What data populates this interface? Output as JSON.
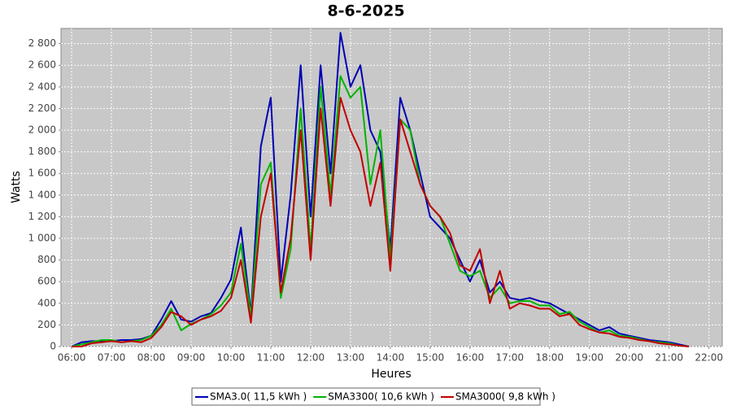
{
  "chart_data": {
    "type": "line",
    "title": "8-6-2025",
    "x_label": "Heures",
    "y_label": "Watts",
    "x": [
      "06:00",
      "06:15",
      "06:30",
      "06:45",
      "07:00",
      "07:15",
      "07:30",
      "07:45",
      "08:00",
      "08:15",
      "08:30",
      "08:45",
      "09:00",
      "09:15",
      "09:30",
      "09:45",
      "10:00",
      "10:15",
      "10:30",
      "10:45",
      "11:00",
      "11:15",
      "11:30",
      "11:45",
      "12:00",
      "12:15",
      "12:30",
      "12:45",
      "13:00",
      "13:15",
      "13:30",
      "13:45",
      "14:00",
      "14:15",
      "14:30",
      "14:45",
      "15:00",
      "15:15",
      "15:30",
      "15:45",
      "16:00",
      "16:15",
      "16:30",
      "16:45",
      "17:00",
      "17:15",
      "17:30",
      "17:45",
      "18:00",
      "18:15",
      "18:30",
      "18:45",
      "19:00",
      "19:15",
      "19:30",
      "19:45",
      "20:00",
      "20:15",
      "20:30",
      "20:45",
      "21:00",
      "21:15",
      "21:30"
    ],
    "series": [
      {
        "name": "SMA3.0( 11,5 kWh )",
        "color": "#0000b4",
        "values": [
          0,
          40,
          50,
          50,
          50,
          60,
          60,
          70,
          100,
          250,
          420,
          250,
          230,
          280,
          310,
          450,
          620,
          1100,
          300,
          1850,
          2300,
          600,
          1400,
          2600,
          1200,
          2600,
          1600,
          2900,
          2400,
          2600,
          2000,
          1800,
          900,
          2300,
          2000,
          1600,
          1200,
          1100,
          1000,
          800,
          600,
          800,
          500,
          600,
          450,
          430,
          450,
          420,
          400,
          350,
          300,
          250,
          200,
          150,
          180,
          120,
          100,
          80,
          60,
          50,
          40,
          20,
          0
        ]
      },
      {
        "name": "SMA3300( 10,6 kWh )",
        "color": "#00b400",
        "values": [
          0,
          20,
          40,
          60,
          60,
          40,
          50,
          60,
          100,
          200,
          350,
          150,
          210,
          250,
          300,
          380,
          500,
          950,
          280,
          1500,
          1700,
          450,
          900,
          2200,
          900,
          2400,
          1400,
          2500,
          2300,
          2400,
          1500,
          2000,
          800,
          2100,
          2000,
          1500,
          1300,
          1200,
          950,
          700,
          650,
          700,
          450,
          550,
          400,
          420,
          420,
          380,
          380,
          300,
          320,
          230,
          180,
          130,
          150,
          100,
          90,
          70,
          50,
          40,
          30,
          10,
          0
        ]
      },
      {
        "name": "SMA3000( 9,8 kWh )",
        "color": "#c00000",
        "values": [
          0,
          0,
          30,
          40,
          50,
          40,
          50,
          40,
          80,
          180,
          320,
          280,
          200,
          250,
          280,
          330,
          450,
          800,
          220,
          1200,
          1600,
          500,
          1000,
          2000,
          800,
          2200,
          1300,
          2300,
          2000,
          1800,
          1300,
          1700,
          700,
          2100,
          1800,
          1500,
          1300,
          1200,
          1050,
          750,
          700,
          900,
          400,
          700,
          350,
          400,
          380,
          350,
          350,
          280,
          300,
          200,
          160,
          130,
          120,
          90,
          80,
          60,
          50,
          30,
          20,
          10,
          0
        ]
      }
    ],
    "xlim": [
      "05:44",
      "22:20"
    ],
    "xticks": [
      "06:00",
      "07:00",
      "08:00",
      "09:00",
      "10:00",
      "11:00",
      "12:00",
      "13:00",
      "14:00",
      "15:00",
      "16:00",
      "17:00",
      "18:00",
      "19:00",
      "20:00",
      "21:00",
      "22:00"
    ],
    "ylim": [
      0,
      2940
    ],
    "yticks": [
      0,
      200,
      400,
      600,
      800,
      {
        "value": 1000,
        "label": "1 000"
      },
      {
        "value": 1200,
        "label": "1 200"
      },
      {
        "value": 1400,
        "label": "1 400"
      },
      {
        "value": 1600,
        "label": "1 600"
      },
      {
        "value": 1800,
        "label": "1 800"
      },
      {
        "value": 2000,
        "label": "2 000"
      },
      {
        "value": 2200,
        "label": "2 200"
      },
      {
        "value": 2400,
        "label": "2 400"
      },
      {
        "value": 2600,
        "label": "2 600"
      },
      {
        "value": 2800,
        "label": "2 800"
      }
    ],
    "grid": true,
    "legend": "bottom"
  }
}
